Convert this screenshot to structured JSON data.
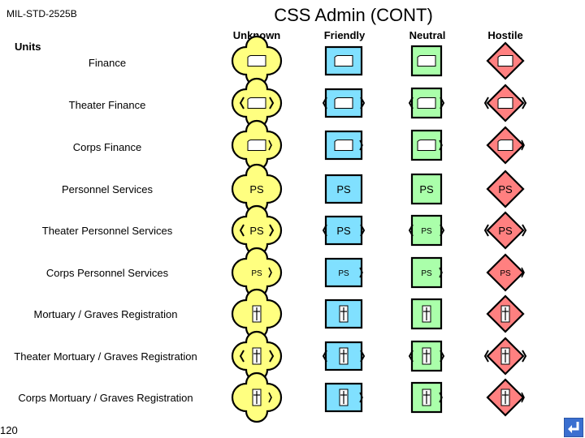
{
  "header": {
    "standard": "MIL-STD-2525B",
    "title": "CSS Admin (CONT)"
  },
  "section_label": "Units",
  "columns": [
    "Unknown",
    "Friendly",
    "Neutral",
    "Hostile"
  ],
  "affiliation_colors": {
    "unknown": "#ffff80",
    "friendly": "#80e0ff",
    "neutral": "#aaffaa",
    "hostile": "#ff8080"
  },
  "rows": [
    {
      "label": "Finance",
      "icon": "finance-icon",
      "echelon": "none"
    },
    {
      "label": "Theater Finance",
      "icon": "finance-icon",
      "echelon": "theater"
    },
    {
      "label": "Corps Finance",
      "icon": "finance-icon",
      "echelon": "corps"
    },
    {
      "label": "Personnel Services",
      "icon": "personnel-services-icon",
      "echelon": "none"
    },
    {
      "label": "Theater Personnel Services",
      "icon": "personnel-services-icon",
      "echelon": "theater"
    },
    {
      "label": "Corps Personnel Services",
      "icon": "personnel-services-icon",
      "echelon": "corps"
    },
    {
      "label": "Mortuary / Graves Registration",
      "icon": "cross-icon",
      "echelon": "none"
    },
    {
      "label": "Theater Mortuary / Graves Registration",
      "icon": "cross-icon",
      "echelon": "theater"
    },
    {
      "label": "Corps Mortuary / Graves Registration",
      "icon": "cross-icon",
      "echelon": "corps"
    }
  ],
  "symbol_text": "PS",
  "page_number": "120",
  "nav_icon": "return-arrow-icon"
}
